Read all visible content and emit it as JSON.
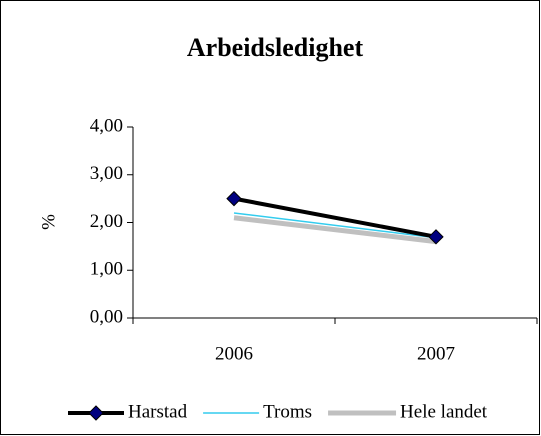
{
  "chart_data": {
    "type": "line",
    "title": "Arbeidsledighet",
    "y_label": "%",
    "categories": [
      "2006",
      "2007"
    ],
    "series": [
      {
        "name": "Harstad",
        "color": "#000000",
        "marker_color": "#000080",
        "values": [
          2.5,
          1.7
        ]
      },
      {
        "name": "Troms",
        "color": "#33ccee",
        "values": [
          2.2,
          1.68
        ]
      },
      {
        "name": "Hele landet",
        "color": "#c0c0c0",
        "values": [
          2.1,
          1.6
        ]
      }
    ],
    "ylim": [
      0,
      4
    ],
    "yticks": [
      {
        "value": 0,
        "label": "0,00"
      },
      {
        "value": 1,
        "label": "1,00"
      },
      {
        "value": 2,
        "label": "2,00"
      },
      {
        "value": 3,
        "label": "3,00"
      },
      {
        "value": 4,
        "label": "4,00"
      }
    ],
    "legend": "bottom"
  }
}
